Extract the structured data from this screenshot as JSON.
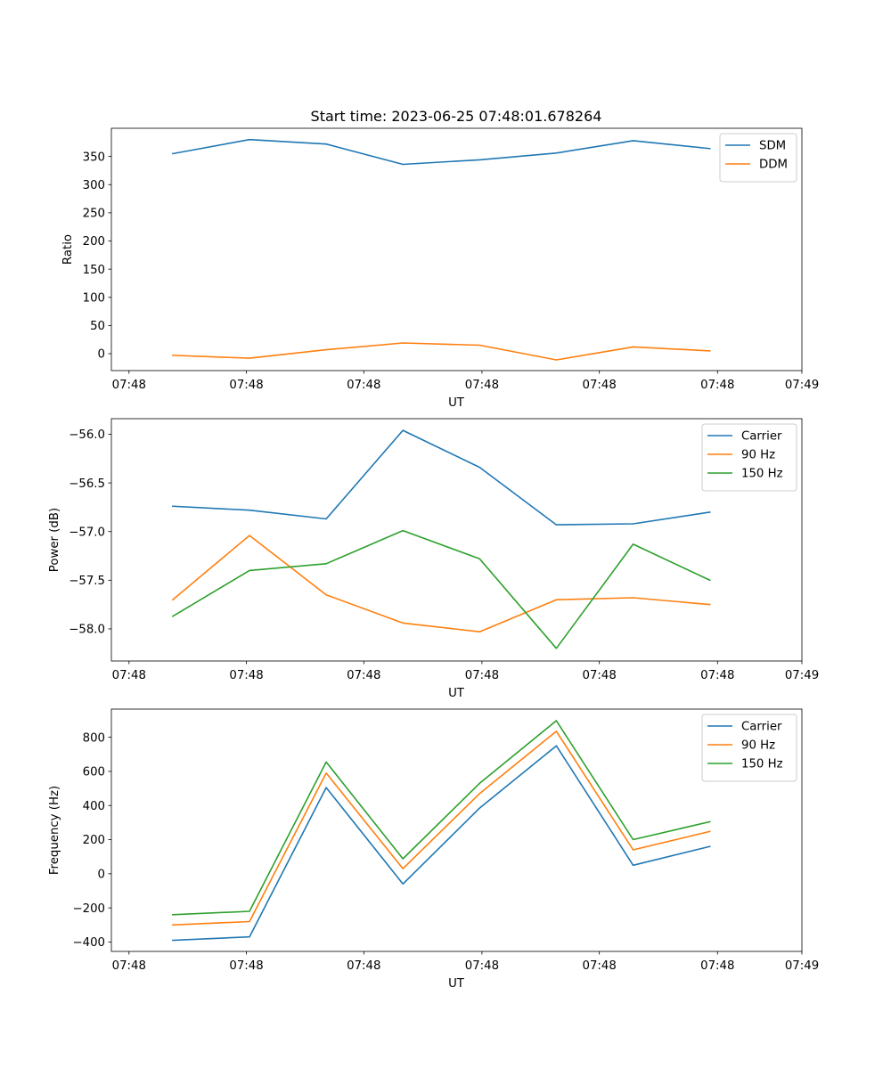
{
  "figure": {
    "title": "Start time: 2023-06-25 07:48:01.678264"
  },
  "chart_data": [
    {
      "type": "line",
      "title": "Start time: 2023-06-25 07:48:01.678264",
      "xlabel": "UT",
      "ylabel": "Ratio",
      "x_tick_labels": [
        "07:48",
        "07:48",
        "07:48",
        "07:48",
        "07:48",
        "07:48",
        "07:49"
      ],
      "x": [
        1,
        2,
        3,
        4,
        5,
        6,
        7,
        8
      ],
      "xlim": [
        0.2,
        9.2
      ],
      "ylim": [
        -30,
        400
      ],
      "y_ticks": [
        0,
        50,
        100,
        150,
        200,
        250,
        300,
        350
      ],
      "legend": "top-right",
      "series": [
        {
          "name": "SDM",
          "color": "#1f77b4",
          "values": [
            355,
            380,
            372,
            336,
            344,
            356,
            378,
            364
          ]
        },
        {
          "name": "DDM",
          "color": "#ff7f0e",
          "values": [
            -3,
            -8,
            7,
            19,
            15,
            -11,
            12,
            5
          ]
        }
      ]
    },
    {
      "type": "line",
      "xlabel": "UT",
      "ylabel": "Power (dB)",
      "x_tick_labels": [
        "07:48",
        "07:48",
        "07:48",
        "07:48",
        "07:48",
        "07:48",
        "07:49"
      ],
      "x": [
        1,
        2,
        3,
        4,
        5,
        6,
        7,
        8
      ],
      "xlim": [
        0.2,
        9.2
      ],
      "ylim": [
        -58.33,
        -55.84
      ],
      "y_ticks": [
        -58.0,
        -57.5,
        -57.0,
        -56.5,
        -56.0
      ],
      "y_tick_labels": [
        "−58.0",
        "−57.5",
        "−57.0",
        "−56.5",
        "−56.0"
      ],
      "legend": "top-right",
      "series": [
        {
          "name": "Carrier",
          "color": "#1f77b4",
          "values": [
            -56.74,
            -56.78,
            -56.87,
            -55.96,
            -56.34,
            -56.93,
            -56.92,
            -56.8
          ]
        },
        {
          "name": "90 Hz",
          "color": "#ff7f0e",
          "values": [
            -57.7,
            -57.04,
            -57.65,
            -57.94,
            -58.03,
            -57.7,
            -57.68,
            -57.75
          ]
        },
        {
          "name": "150 Hz",
          "color": "#2ca02c",
          "values": [
            -57.87,
            -57.4,
            -57.33,
            -56.99,
            -57.28,
            -58.2,
            -57.13,
            -57.5
          ]
        }
      ]
    },
    {
      "type": "line",
      "xlabel": "UT",
      "ylabel": "Frequency (Hz)",
      "x_tick_labels": [
        "07:48",
        "07:48",
        "07:48",
        "07:48",
        "07:48",
        "07:48",
        "07:49"
      ],
      "x": [
        1,
        2,
        3,
        4,
        5,
        6,
        7,
        8
      ],
      "xlim": [
        0.2,
        9.2
      ],
      "ylim": [
        -455,
        965
      ],
      "y_ticks": [
        -400,
        -200,
        0,
        200,
        400,
        600,
        800
      ],
      "y_tick_labels": [
        "−400",
        "−200",
        "0",
        "200",
        "400",
        "600",
        "800"
      ],
      "legend": "top-right",
      "series": [
        {
          "name": "Carrier",
          "color": "#1f77b4",
          "values": [
            -390,
            -370,
            505,
            -60,
            385,
            750,
            50,
            160
          ]
        },
        {
          "name": "90 Hz",
          "color": "#ff7f0e",
          "values": [
            -300,
            -280,
            590,
            30,
            470,
            835,
            140,
            248
          ]
        },
        {
          "name": "150 Hz",
          "color": "#2ca02c",
          "values": [
            -240,
            -220,
            655,
            88,
            530,
            897,
            200,
            305
          ]
        }
      ]
    }
  ]
}
